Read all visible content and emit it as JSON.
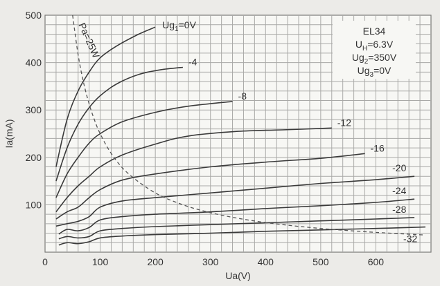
{
  "chart_data": {
    "type": "line",
    "xlabel": "Ua(V)",
    "ylabel": "Ia(mA)",
    "xlim": [
      0,
      700
    ],
    "ylim": [
      0,
      500
    ],
    "x_ticks": [
      0,
      100,
      200,
      300,
      400,
      500,
      600
    ],
    "y_ticks": [
      100,
      200,
      300,
      400,
      500
    ],
    "grid": true,
    "legend_position": "top-right",
    "legend_lines": [
      {
        "main": "EL34",
        "sub": "",
        "rest": ""
      },
      {
        "main": "U",
        "sub": "H",
        "rest": "=6.3V"
      },
      {
        "main": "Ug",
        "sub": "2",
        "rest": "=350V"
      },
      {
        "main": "Ug",
        "sub": "3",
        "rest": "=0V"
      }
    ],
    "series": [
      {
        "name": "Ug1=0V",
        "label_main": "Ug",
        "label_sub": "1",
        "label_rest": "=0V",
        "points": [
          [
            20,
            180
          ],
          [
            40,
            280
          ],
          [
            60,
            340
          ],
          [
            80,
            380
          ],
          [
            100,
            410
          ],
          [
            130,
            435
          ],
          [
            170,
            460
          ],
          [
            200,
            475
          ]
        ]
      },
      {
        "name": "-4",
        "label_main": "-4",
        "label_sub": "",
        "label_rest": "",
        "points": [
          [
            20,
            150
          ],
          [
            40,
            220
          ],
          [
            60,
            270
          ],
          [
            80,
            305
          ],
          [
            100,
            330
          ],
          [
            130,
            355
          ],
          [
            170,
            375
          ],
          [
            210,
            385
          ],
          [
            250,
            390
          ]
        ]
      },
      {
        "name": "-8",
        "label_main": "-8",
        "label_sub": "",
        "label_rest": "",
        "points": [
          [
            20,
            115
          ],
          [
            40,
            165
          ],
          [
            60,
            200
          ],
          [
            80,
            230
          ],
          [
            100,
            250
          ],
          [
            140,
            275
          ],
          [
            200,
            295
          ],
          [
            260,
            308
          ],
          [
            340,
            318
          ]
        ]
      },
      {
        "name": "-12",
        "label_main": "-12",
        "label_sub": "",
        "label_rest": "",
        "points": [
          [
            20,
            85
          ],
          [
            40,
            115
          ],
          [
            60,
            140
          ],
          [
            80,
            160
          ],
          [
            100,
            180
          ],
          [
            140,
            205
          ],
          [
            200,
            228
          ],
          [
            260,
            245
          ],
          [
            350,
            255
          ],
          [
            430,
            258
          ],
          [
            520,
            262
          ]
        ]
      },
      {
        "name": "-16",
        "label_main": "-16",
        "label_sub": "",
        "label_rest": "",
        "points": [
          [
            20,
            70
          ],
          [
            40,
            85
          ],
          [
            60,
            95
          ],
          [
            80,
            115
          ],
          [
            100,
            132
          ],
          [
            140,
            152
          ],
          [
            200,
            165
          ],
          [
            300,
            180
          ],
          [
            400,
            190
          ],
          [
            500,
            198
          ],
          [
            580,
            208
          ]
        ]
      },
      {
        "name": "-20",
        "label_main": "-20",
        "label_sub": "",
        "label_rest": "",
        "points": [
          [
            20,
            55
          ],
          [
            40,
            60
          ],
          [
            60,
            65
          ],
          [
            80,
            75
          ],
          [
            100,
            95
          ],
          [
            140,
            108
          ],
          [
            200,
            115
          ],
          [
            300,
            125
          ],
          [
            400,
            135
          ],
          [
            500,
            145
          ],
          [
            590,
            152
          ],
          [
            670,
            160
          ]
        ]
      },
      {
        "name": "-24",
        "label_main": "-24",
        "label_sub": "",
        "label_rest": "",
        "points": [
          [
            25,
            38
          ],
          [
            40,
            48
          ],
          [
            60,
            45
          ],
          [
            80,
            52
          ],
          [
            100,
            68
          ],
          [
            140,
            75
          ],
          [
            200,
            80
          ],
          [
            300,
            85
          ],
          [
            400,
            92
          ],
          [
            500,
            98
          ],
          [
            600,
            105
          ],
          [
            670,
            112
          ]
        ]
      },
      {
        "name": "-28",
        "label_main": "-28",
        "label_sub": "",
        "label_rest": "",
        "points": [
          [
            25,
            28
          ],
          [
            40,
            33
          ],
          [
            60,
            30
          ],
          [
            80,
            33
          ],
          [
            100,
            45
          ],
          [
            140,
            50
          ],
          [
            200,
            54
          ],
          [
            300,
            58
          ],
          [
            400,
            62
          ],
          [
            500,
            66
          ],
          [
            600,
            70
          ],
          [
            670,
            73
          ]
        ]
      },
      {
        "name": "-32",
        "label_main": "-32",
        "label_sub": "",
        "label_rest": "",
        "points": [
          [
            25,
            15
          ],
          [
            40,
            20
          ],
          [
            60,
            18
          ],
          [
            80,
            22
          ],
          [
            100,
            30
          ],
          [
            140,
            34
          ],
          [
            200,
            37
          ],
          [
            300,
            40
          ],
          [
            400,
            44
          ],
          [
            500,
            47
          ],
          [
            600,
            50
          ],
          [
            690,
            53
          ]
        ]
      }
    ],
    "power_curve": {
      "label": "Pa=25W",
      "points": [
        [
          50,
          500
        ],
        [
          60,
          416.7
        ],
        [
          70,
          357.1
        ],
        [
          80,
          312.5
        ],
        [
          90,
          277.8
        ],
        [
          100,
          250
        ],
        [
          120,
          208.3
        ],
        [
          150,
          166.7
        ],
        [
          200,
          125
        ],
        [
          250,
          100
        ],
        [
          300,
          83.3
        ],
        [
          350,
          71.4
        ],
        [
          400,
          62.5
        ],
        [
          450,
          55.6
        ],
        [
          500,
          50
        ],
        [
          550,
          45.5
        ],
        [
          600,
          41.7
        ],
        [
          650,
          38.5
        ],
        [
          690,
          36.2
        ]
      ]
    }
  }
}
